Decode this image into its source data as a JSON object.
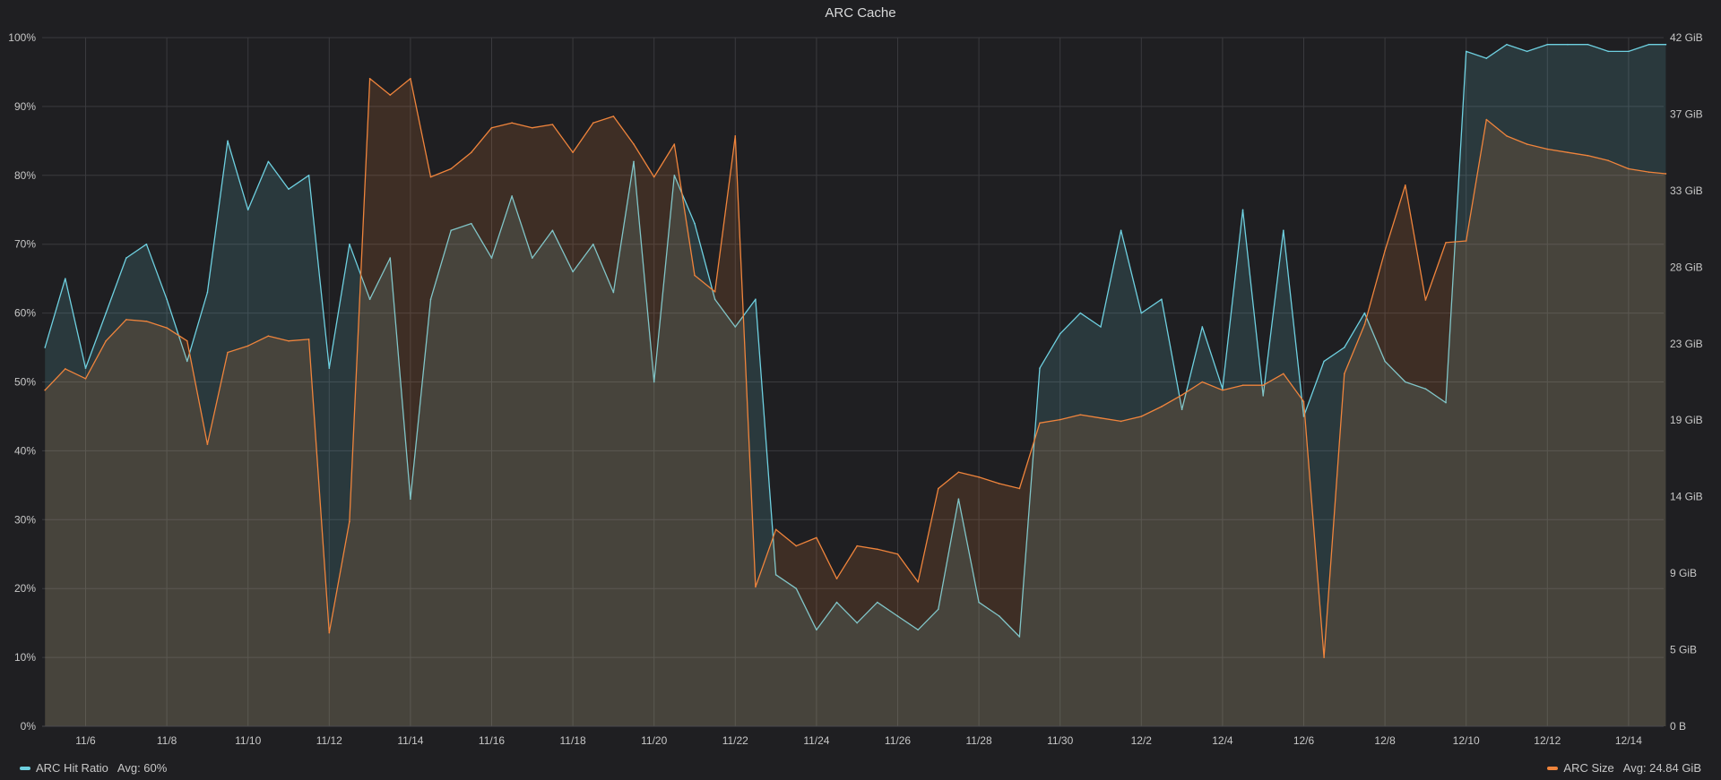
{
  "panel": {
    "title": "ARC Cache"
  },
  "legend": [
    {
      "name": "ARC Hit Ratio",
      "avg_text": "Avg: 60%",
      "color": "#6ed0e0"
    },
    {
      "name": "ARC Size",
      "avg_text": "Avg: 24.84 GiB",
      "color": "#ef843c"
    }
  ],
  "chart_data": {
    "type": "line",
    "title": "ARC Cache",
    "grid": true,
    "legend_placement": "bottom",
    "x_range_days": [
      "11/5",
      "12/15"
    ],
    "x_ticks": [
      "11/6",
      "11/8",
      "11/10",
      "11/12",
      "11/14",
      "11/16",
      "11/18",
      "11/20",
      "11/22",
      "11/24",
      "11/26",
      "11/28",
      "11/30",
      "12/2",
      "12/4",
      "12/6",
      "12/8",
      "12/10",
      "12/12",
      "12/14"
    ],
    "y_left": {
      "ylim": [
        0,
        100
      ],
      "ticks": [
        "0%",
        "10%",
        "20%",
        "30%",
        "40%",
        "50%",
        "60%",
        "70%",
        "80%",
        "90%",
        "100%"
      ]
    },
    "y_right": {
      "ylim": [
        0,
        42
      ],
      "ticks": [
        "0 B",
        "5 GiB",
        "9 GiB",
        "14 GiB",
        "19 GiB",
        "23 GiB",
        "28 GiB",
        "33 GiB",
        "37 GiB",
        "42 GiB"
      ],
      "tick_values": [
        0,
        4.67,
        9.33,
        14,
        18.67,
        23.33,
        28,
        32.67,
        37.33,
        42
      ]
    },
    "series": [
      {
        "name": "ARC Hit Ratio",
        "unit": "%",
        "axis": "left",
        "color": "#6ed0e0",
        "x": [
          "11/5 00:00",
          "11/5 12:00",
          "11/6 00:00",
          "11/6 12:00",
          "11/7 00:00",
          "11/7 12:00",
          "11/8 00:00",
          "11/8 12:00",
          "11/9 00:00",
          "11/9 12:00",
          "11/10 00:00",
          "11/10 12:00",
          "11/11 00:00",
          "11/11 12:00",
          "11/12 00:00",
          "11/12 12:00",
          "11/13 00:00",
          "11/13 12:00",
          "11/14 00:00",
          "11/14 12:00",
          "11/15 00:00",
          "11/15 12:00",
          "11/16 00:00",
          "11/16 12:00",
          "11/17 00:00",
          "11/17 12:00",
          "11/18 00:00",
          "11/18 12:00",
          "11/19 00:00",
          "11/19 12:00",
          "11/20 00:00",
          "11/20 12:00",
          "11/21 00:00",
          "11/21 12:00",
          "11/22 00:00",
          "11/22 12:00",
          "11/23 00:00",
          "11/23 12:00",
          "11/24 00:00",
          "11/24 12:00",
          "11/25 00:00",
          "11/25 12:00",
          "11/26 00:00",
          "11/26 12:00",
          "11/27 00:00",
          "11/27 12:00",
          "11/28 00:00",
          "11/28 12:00",
          "11/29 00:00",
          "11/29 12:00",
          "11/30 00:00",
          "11/30 12:00",
          "12/1 00:00",
          "12/1 12:00",
          "12/2 00:00",
          "12/2 12:00",
          "12/3 00:00",
          "12/3 12:00",
          "12/4 00:00",
          "12/4 12:00",
          "12/5 00:00",
          "12/5 12:00",
          "12/6 00:00",
          "12/6 12:00",
          "12/7 00:00",
          "12/7 12:00",
          "12/8 00:00",
          "12/8 12:00",
          "12/9 00:00",
          "12/9 12:00",
          "12/10 00:00",
          "12/10 12:00",
          "12/11 00:00",
          "12/11 12:00",
          "12/12 00:00",
          "12/12 12:00",
          "12/13 00:00",
          "12/13 12:00",
          "12/14 00:00",
          "12/14 12:00",
          "12/14 22:00"
        ],
        "values": [
          55,
          65,
          52,
          60,
          68,
          70,
          62,
          53,
          63,
          85,
          75,
          82,
          78,
          80,
          52,
          70,
          62,
          68,
          33,
          62,
          72,
          73,
          68,
          77,
          68,
          72,
          66,
          70,
          63,
          82,
          50,
          80,
          73,
          62,
          58,
          62,
          22,
          20,
          14,
          18,
          15,
          18,
          16,
          14,
          17,
          33,
          18,
          16,
          13,
          52,
          57,
          60,
          58,
          72,
          60,
          62,
          46,
          58,
          49,
          75,
          48,
          72,
          45,
          53,
          55,
          60,
          53,
          50,
          49,
          47,
          98,
          97,
          99,
          98,
          99,
          99,
          99,
          98,
          98,
          99,
          99
        ]
      },
      {
        "name": "ARC Size",
        "unit": "GiB",
        "axis": "right",
        "color": "#ef843c",
        "x": [
          "11/5 00:00",
          "11/5 12:00",
          "11/6 00:00",
          "11/6 12:00",
          "11/7 00:00",
          "11/7 12:00",
          "11/8 00:00",
          "11/8 12:00",
          "11/9 00:00",
          "11/9 12:00",
          "11/10 00:00",
          "11/10 12:00",
          "11/11 00:00",
          "11/11 12:00",
          "11/12 00:00",
          "11/12 12:00",
          "11/13 00:00",
          "11/13 12:00",
          "11/14 00:00",
          "11/14 12:00",
          "11/15 00:00",
          "11/15 12:00",
          "11/16 00:00",
          "11/16 12:00",
          "11/17 00:00",
          "11/17 12:00",
          "11/18 00:00",
          "11/18 12:00",
          "11/19 00:00",
          "11/19 12:00",
          "11/20 00:00",
          "11/20 12:00",
          "11/21 00:00",
          "11/21 12:00",
          "11/22 00:00",
          "11/22 12:00",
          "11/23 00:00",
          "11/23 12:00",
          "11/24 00:00",
          "11/24 12:00",
          "11/25 00:00",
          "11/25 12:00",
          "11/26 00:00",
          "11/26 12:00",
          "11/27 00:00",
          "11/27 12:00",
          "11/28 00:00",
          "11/28 12:00",
          "11/29 00:00",
          "11/29 12:00",
          "11/30 00:00",
          "11/30 12:00",
          "12/1 00:00",
          "12/1 12:00",
          "12/2 00:00",
          "12/2 12:00",
          "12/3 00:00",
          "12/3 12:00",
          "12/4 00:00",
          "12/4 12:00",
          "12/5 00:00",
          "12/5 12:00",
          "12/6 00:00",
          "12/6 12:00",
          "12/7 00:00",
          "12/7 12:00",
          "12/8 00:00",
          "12/8 12:00",
          "12/9 00:00",
          "12/9 12:00",
          "12/10 00:00",
          "12/10 12:00",
          "12/11 00:00",
          "12/11 12:00",
          "12/12 00:00",
          "12/12 12:00",
          "12/13 00:00",
          "12/13 12:00",
          "12/14 00:00",
          "12/14 12:00",
          "12/14 22:00"
        ],
        "values": [
          20.5,
          21.8,
          21.2,
          23.5,
          24.8,
          24.7,
          24.3,
          23.5,
          17.2,
          22.8,
          23.2,
          23.8,
          23.5,
          23.6,
          5.7,
          12.5,
          39.5,
          38.5,
          39.5,
          33.5,
          34,
          35,
          36.5,
          36.8,
          36.5,
          36.7,
          35,
          36.8,
          37.2,
          35.5,
          33.5,
          35.5,
          27.5,
          26.5,
          36,
          8.5,
          12,
          11,
          11.5,
          9,
          11,
          10.8,
          10.5,
          8.8,
          14.5,
          15.5,
          15.2,
          14.8,
          14.5,
          18.5,
          18.7,
          19,
          18.8,
          18.6,
          18.9,
          19.5,
          20.2,
          21,
          20.5,
          20.8,
          20.8,
          21.5,
          19.8,
          4.2,
          21.5,
          24.5,
          29,
          33,
          26,
          29.5,
          29.6,
          37,
          36,
          35.5,
          35.2,
          35,
          34.8,
          34.5,
          34,
          33.8,
          33.7
        ]
      }
    ]
  }
}
